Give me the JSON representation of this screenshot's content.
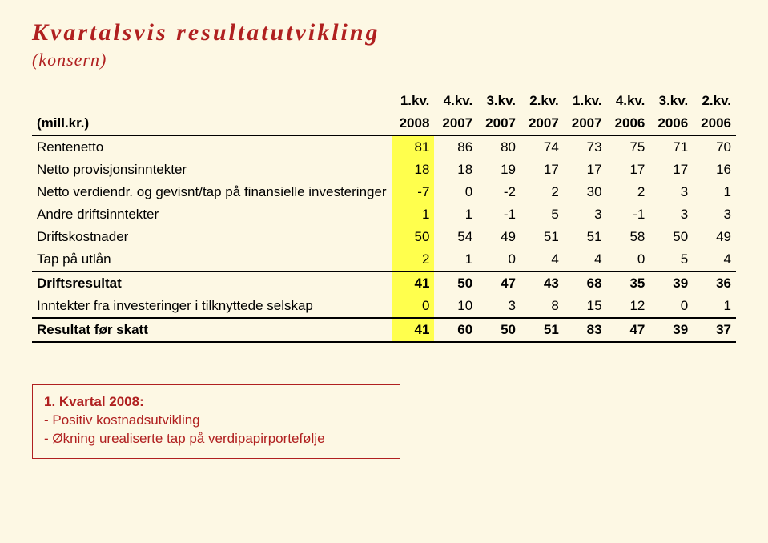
{
  "title": "Kvartalsvis resultatutvikling",
  "subtitle": "(konsern)",
  "table": {
    "row_label_header": "(mill.kr.)",
    "header1": [
      "1.kv.",
      "4.kv.",
      "3.kv.",
      "2.kv.",
      "1.kv.",
      "4.kv.",
      "3.kv.",
      "2.kv."
    ],
    "header2": [
      "2008",
      "2007",
      "2007",
      "2007",
      "2007",
      "2006",
      "2006",
      "2006"
    ],
    "rows": [
      {
        "label": "Rentenetto",
        "vals": [
          "81",
          "86",
          "80",
          "74",
          "73",
          "75",
          "71",
          "70"
        ],
        "highlight_first": true
      },
      {
        "label": "Netto provisjonsinntekter",
        "vals": [
          "18",
          "18",
          "19",
          "17",
          "17",
          "17",
          "17",
          "16"
        ],
        "highlight_first": true
      },
      {
        "label": "Netto verdiendr. og gevisnt/tap på finansielle investeringer",
        "vals": [
          "-7",
          "0",
          "-2",
          "2",
          "30",
          "2",
          "3",
          "1"
        ],
        "highlight_first": true
      },
      {
        "label": "Andre driftsinntekter",
        "vals": [
          "1",
          "1",
          "-1",
          "5",
          "3",
          "-1",
          "3",
          "3"
        ],
        "highlight_first": true
      },
      {
        "label": "Driftskostnader",
        "vals": [
          "50",
          "54",
          "49",
          "51",
          "51",
          "58",
          "50",
          "49"
        ],
        "highlight_first": true
      },
      {
        "label": "Tap på utlån",
        "vals": [
          "2",
          "1",
          "0",
          "4",
          "4",
          "0",
          "5",
          "4"
        ],
        "highlight_first": true,
        "sep_after": true
      },
      {
        "label": "Driftsresultat",
        "vals": [
          "41",
          "50",
          "47",
          "43",
          "68",
          "35",
          "39",
          "36"
        ],
        "highlight_first": true,
        "bold": true
      },
      {
        "label": "Inntekter fra investeringer i tilknyttede selskap",
        "vals": [
          "0",
          "10",
          "3",
          "8",
          "15",
          "12",
          "0",
          "1"
        ],
        "highlight_first": true,
        "sep_after": true
      },
      {
        "label": "Resultat før skatt",
        "vals": [
          "41",
          "60",
          "50",
          "51",
          "83",
          "47",
          "39",
          "37"
        ],
        "highlight_first": true,
        "bold": true,
        "sep_after": true
      }
    ]
  },
  "note": {
    "title": "1. Kvartal 2008:",
    "lines": [
      "- Positiv kostnadsutvikling",
      "- Økning urealiserte tap på verdipapirportefølje"
    ]
  }
}
